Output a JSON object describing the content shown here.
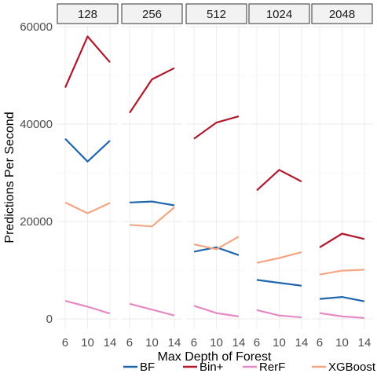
{
  "chart_data": {
    "type": "line",
    "xlabel": "Max Depth of Forest",
    "ylabel": "Predictions Per Second",
    "x": [
      6,
      10,
      14
    ],
    "x_ticks": [
      "6",
      "10",
      "14"
    ],
    "ylim": [
      0,
      60000
    ],
    "y_ticks": [
      0,
      20000,
      40000,
      60000
    ],
    "y_tick_labels": [
      "0",
      "20000",
      "40000",
      "60000"
    ],
    "grid": true,
    "legend_position": "bottom",
    "facets": [
      {
        "label": "128",
        "series": [
          {
            "name": "BF",
            "values": [
              37000,
              32300,
              36600
            ]
          },
          {
            "name": "Bin+",
            "values": [
              47500,
              58000,
              52700
            ]
          },
          {
            "name": "RerF",
            "values": [
              3700,
              2500,
              1100
            ]
          },
          {
            "name": "XGBoost",
            "values": [
              23900,
              21700,
              23800
            ]
          }
        ]
      },
      {
        "label": "256",
        "series": [
          {
            "name": "BF",
            "values": [
              23900,
              24100,
              23300
            ]
          },
          {
            "name": "Bin+",
            "values": [
              42300,
              49200,
              51500
            ]
          },
          {
            "name": "RerF",
            "values": [
              3100,
              1900,
              700
            ]
          },
          {
            "name": "XGBoost",
            "values": [
              19300,
              19000,
              22900
            ]
          }
        ]
      },
      {
        "label": "512",
        "series": [
          {
            "name": "BF",
            "values": [
              13800,
              14700,
              13100
            ]
          },
          {
            "name": "Bin+",
            "values": [
              37000,
              40300,
              41600
            ]
          },
          {
            "name": "RerF",
            "values": [
              2700,
              1200,
              500
            ]
          },
          {
            "name": "XGBoost",
            "values": [
              15300,
              14300,
              16900
            ]
          }
        ]
      },
      {
        "label": "1024",
        "series": [
          {
            "name": "BF",
            "values": [
              8000,
              7400,
              6800
            ]
          },
          {
            "name": "Bin+",
            "values": [
              26400,
              30600,
              28200
            ]
          },
          {
            "name": "RerF",
            "values": [
              1800,
              700,
              300
            ]
          },
          {
            "name": "XGBoost",
            "values": [
              11500,
              12500,
              13700
            ]
          }
        ]
      },
      {
        "label": "2048",
        "series": [
          {
            "name": "BF",
            "values": [
              4100,
              4500,
              3600
            ]
          },
          {
            "name": "Bin+",
            "values": [
              14700,
              17500,
              16400
            ]
          },
          {
            "name": "RerF",
            "values": [
              1200,
              500,
              200
            ]
          },
          {
            "name": "XGBoost",
            "values": [
              9100,
              9900,
              10100
            ]
          }
        ]
      }
    ],
    "legend": [
      {
        "name": "BF",
        "color": "#2166ac"
      },
      {
        "name": "Bin+",
        "color": "#b2182b"
      },
      {
        "name": "RerF",
        "color": "#e78ac3"
      },
      {
        "name": "XGBoost",
        "color": "#f4a582"
      }
    ]
  }
}
